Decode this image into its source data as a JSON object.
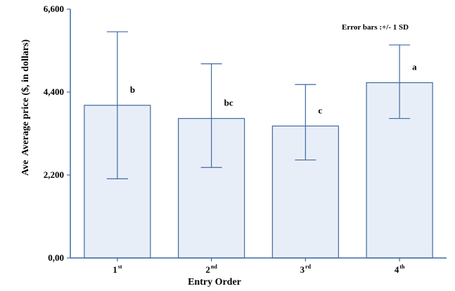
{
  "chart_data": {
    "type": "bar",
    "categories": [
      {
        "base": "1",
        "sup": "st"
      },
      {
        "base": "2",
        "sup": "nd"
      },
      {
        "base": "3",
        "sup": "rd"
      },
      {
        "base": "4",
        "sup": "th"
      }
    ],
    "values": [
      4050,
      3700,
      3500,
      4650
    ],
    "error_low": [
      2100,
      2400,
      2600,
      3700
    ],
    "error_high": [
      6000,
      5150,
      4600,
      5650
    ],
    "letters": [
      "b",
      "bc",
      "c",
      "a"
    ],
    "y_ticks": [
      "0,00",
      "2,200",
      "4,400",
      "6,600"
    ],
    "ylim": [
      0,
      6600
    ],
    "xlabel": "Entry Order",
    "ylabel_prefix": "Ave",
    "ylabel": "Average price ($, in dollars)",
    "note": "Error  bars :+/- 1 SD",
    "grid": false,
    "colors": {
      "bar_fill": "#e8eef8",
      "bar_stroke": "#3f6aa3",
      "error_bar": "#3f6aa3",
      "axis": "#3f6aa3"
    }
  }
}
